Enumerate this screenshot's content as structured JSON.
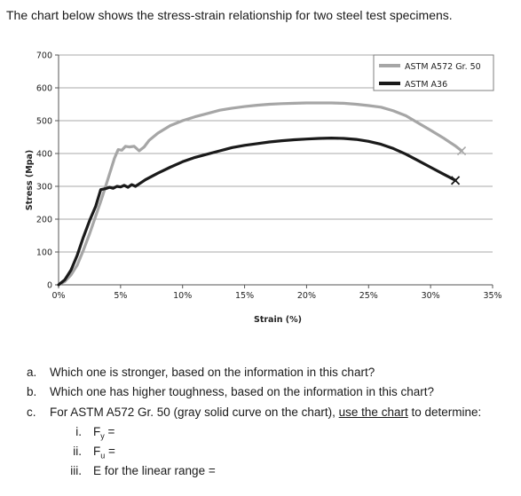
{
  "intro": "The chart below shows the stress-strain relationship for two steel test specimens.",
  "chart_data": {
    "type": "line",
    "xlabel": "Strain (%)",
    "ylabel": "Stress (Mpa)",
    "xlim": [
      0,
      35
    ],
    "ylim": [
      0,
      700
    ],
    "x_ticks": [
      "0%",
      "5%",
      "10%",
      "15%",
      "20%",
      "25%",
      "30%",
      "35%"
    ],
    "y_ticks": [
      "0",
      "100",
      "200",
      "300",
      "400",
      "500",
      "600",
      "700"
    ],
    "grid": true,
    "legend_position": "top-right",
    "series": [
      {
        "name": "ASTM A572 Gr. 50",
        "color": "#a6a6a6",
        "end_marker": "x",
        "x": [
          0,
          0.5,
          1,
          1.5,
          2,
          2.5,
          3,
          3.5,
          4,
          4.5,
          4.8,
          5.1,
          5.4,
          5.7,
          6.1,
          6.5,
          6.9,
          7.3,
          8,
          9,
          10,
          11,
          12,
          13,
          14,
          15,
          16,
          17,
          18,
          19,
          20,
          21,
          22,
          23,
          24,
          25,
          26,
          27,
          28,
          29,
          30,
          31,
          32,
          32.5
        ],
        "y": [
          0,
          10,
          30,
          60,
          105,
          155,
          210,
          265,
          325,
          385,
          412,
          410,
          422,
          420,
          422,
          408,
          420,
          440,
          462,
          485,
          500,
          512,
          522,
          532,
          538,
          543,
          547,
          550,
          552,
          553,
          554,
          554,
          554,
          553,
          550,
          546,
          541,
          530,
          515,
          493,
          471,
          448,
          423,
          408
        ]
      },
      {
        "name": "ASTM A36",
        "color": "#1a1a1a",
        "end_marker": "x",
        "x": [
          0,
          0.5,
          1,
          1.5,
          2,
          2.5,
          3,
          3.4,
          3.8,
          4.1,
          4.4,
          4.7,
          5,
          5.3,
          5.6,
          5.9,
          6.2,
          6.6,
          7,
          8,
          9,
          10,
          11,
          12,
          13,
          14,
          15,
          16,
          17,
          18,
          19,
          20,
          21,
          22,
          23,
          24,
          25,
          26,
          27,
          28,
          29,
          30,
          31,
          31.5,
          32
        ],
        "y": [
          0,
          15,
          45,
          90,
          145,
          195,
          240,
          290,
          293,
          297,
          294,
          300,
          298,
          303,
          297,
          305,
          300,
          310,
          320,
          340,
          358,
          375,
          388,
          398,
          408,
          418,
          425,
          430,
          435,
          439,
          442,
          444,
          446,
          447,
          446,
          443,
          437,
          428,
          415,
          398,
          378,
          358,
          338,
          328,
          318
        ]
      }
    ]
  },
  "questions": [
    {
      "letter": "a.",
      "text": "Which one is stronger, based on the information in this chart?"
    },
    {
      "letter": "b.",
      "text": "Which one has higher toughness, based on the information in this chart?"
    },
    {
      "letter": "c.",
      "text_before": "For ASTM A572 Gr. 50 (gray solid curve on the chart), ",
      "text_link": "use the chart",
      "text_after": " to determine:"
    }
  ],
  "subitems": [
    {
      "num": "i.",
      "sym": "F",
      "sub": "y",
      "rest": " ="
    },
    {
      "num": "ii.",
      "sym": "F",
      "sub": "u",
      "rest": " ="
    },
    {
      "num": "iii.",
      "text": "E for the linear range ="
    }
  ]
}
